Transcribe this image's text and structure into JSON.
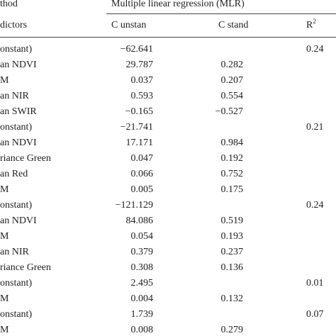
{
  "header": {
    "method": "thod",
    "group": "Multiple linear regression (MLR)",
    "predictors": "dictors",
    "c_unstan": "C unstan",
    "c_stand": "C stand",
    "r2": "R",
    "r2_sup": "2"
  },
  "rows": [
    {
      "predictor": "onstant)",
      "c_unstan": "−62.641",
      "r2": "0.24"
    },
    {
      "predictor": "an NDVI",
      "c_unstan": "29.787",
      "c_stand": "0.282"
    },
    {
      "predictor": "M",
      "c_unstan": "0.037",
      "c_stand": "0.207"
    },
    {
      "predictor": "an NIR",
      "c_unstan": "0.593",
      "c_stand": "0.554"
    },
    {
      "predictor": "an SWIR",
      "c_unstan": "−0.165",
      "c_stand": "−0.527"
    },
    {
      "predictor": "onstant)",
      "c_unstan": "−21.741",
      "r2": "0.21"
    },
    {
      "predictor": "an NDVI",
      "c_unstan": "17.171",
      "c_stand": "0.984"
    },
    {
      "predictor": "riance Green",
      "c_unstan": "0.047",
      "c_stand": "0.192"
    },
    {
      "predictor": "an Red",
      "c_unstan": "0.066",
      "c_stand": "0.752"
    },
    {
      "predictor": "M",
      "c_unstan": "0.005",
      "c_stand": "0.175"
    },
    {
      "predictor": "onstant)",
      "c_unstan": "−121.129",
      "r2": "0.24"
    },
    {
      "predictor": "an NDVI",
      "c_unstan": "84.086",
      "c_stand": "0.519"
    },
    {
      "predictor": "M",
      "c_unstan": "0.054",
      "c_stand": "0.193"
    },
    {
      "predictor": "an NIR",
      "c_unstan": "0.379",
      "c_stand": "0.237"
    },
    {
      "predictor": "riance Green",
      "c_unstan": "0.308",
      "c_stand": "0.136"
    },
    {
      "predictor": "onstant)",
      "c_unstan": "2.495",
      "r2": "0.01"
    },
    {
      "predictor": "M",
      "c_unstan": "0.004",
      "c_stand": "0.132"
    },
    {
      "predictor": "onstant)",
      "c_unstan": "1.739",
      "r2": "0.07"
    },
    {
      "predictor": "M",
      "c_unstan": "0.008",
      "c_stand": "0.279"
    }
  ]
}
